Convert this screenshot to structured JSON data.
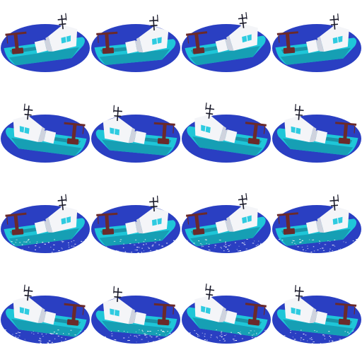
{
  "sprite_sheet": {
    "columns": 4,
    "rows": 4,
    "colors": {
      "background": "#ffffff",
      "water_oval": "#2a3fc2",
      "hull": "#1fc6d8",
      "hull_shade": "#169fb4",
      "cabin": "#f4f5f8",
      "cabin_shade": "#cfd3de",
      "window": "#2ecbe0",
      "crane": "#6b2a2a",
      "antenna": "#1a1a2a",
      "spray": "#ffffff"
    },
    "frames": [
      {
        "row": 0,
        "col": 0,
        "facing": "right",
        "splash": false
      },
      {
        "row": 0,
        "col": 1,
        "facing": "right",
        "splash": false
      },
      {
        "row": 0,
        "col": 2,
        "facing": "right",
        "splash": false
      },
      {
        "row": 0,
        "col": 3,
        "facing": "right",
        "splash": false
      },
      {
        "row": 1,
        "col": 0,
        "facing": "left",
        "splash": false
      },
      {
        "row": 1,
        "col": 1,
        "facing": "left",
        "splash": false
      },
      {
        "row": 1,
        "col": 2,
        "facing": "left",
        "splash": false
      },
      {
        "row": 1,
        "col": 3,
        "facing": "left",
        "splash": false
      },
      {
        "row": 2,
        "col": 0,
        "facing": "right",
        "splash": true
      },
      {
        "row": 2,
        "col": 1,
        "facing": "right",
        "splash": true
      },
      {
        "row": 2,
        "col": 2,
        "facing": "right",
        "splash": true
      },
      {
        "row": 2,
        "col": 3,
        "facing": "right",
        "splash": true
      },
      {
        "row": 3,
        "col": 0,
        "facing": "left",
        "splash": true
      },
      {
        "row": 3,
        "col": 1,
        "facing": "left",
        "splash": true
      },
      {
        "row": 3,
        "col": 2,
        "facing": "left",
        "splash": true
      },
      {
        "row": 3,
        "col": 3,
        "facing": "left",
        "splash": true
      }
    ]
  }
}
